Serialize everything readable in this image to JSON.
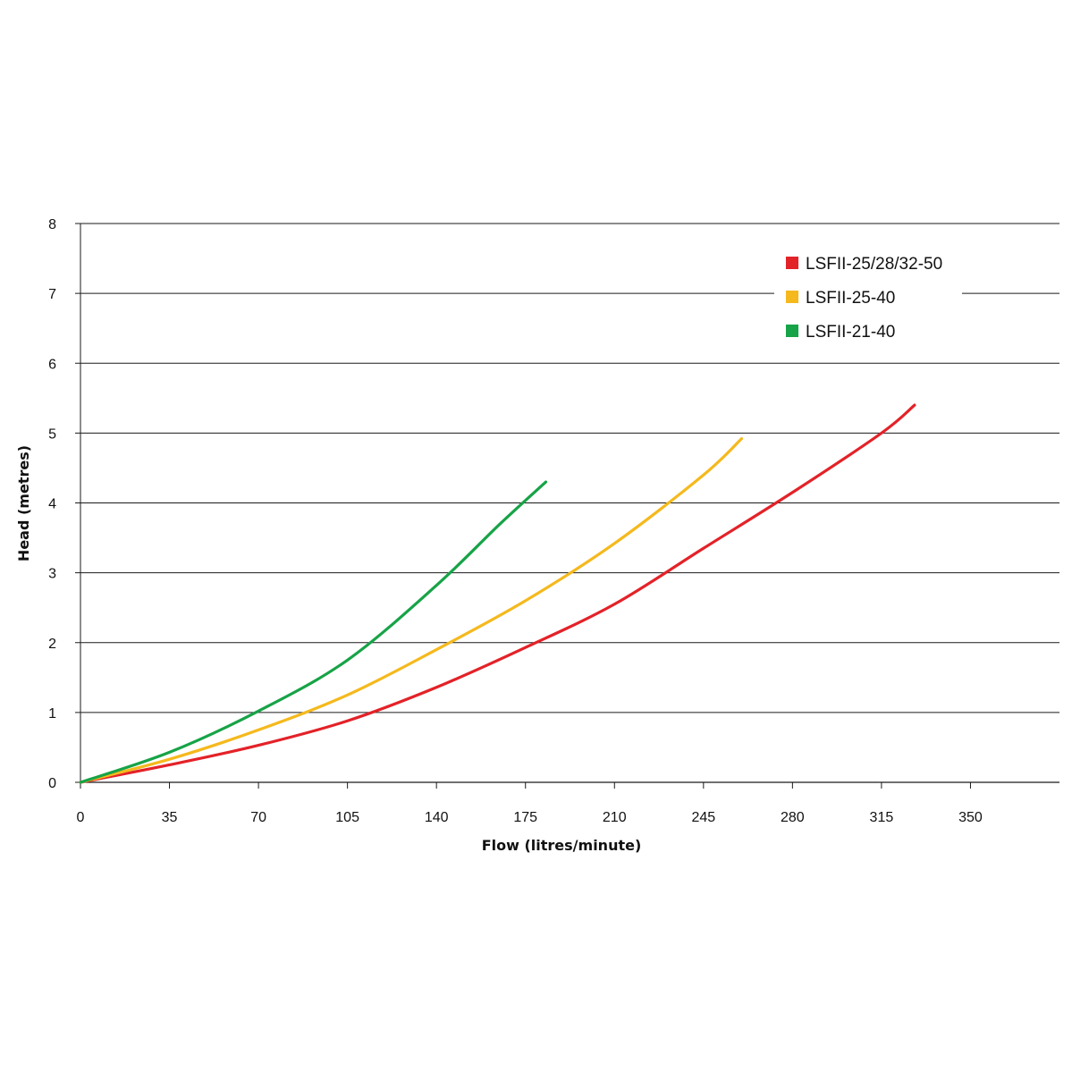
{
  "chart_data": {
    "type": "line",
    "xlabel": "Flow (litres/minute)",
    "ylabel": "Head (metres)",
    "xlim": [
      0,
      385
    ],
    "ylim": [
      0,
      8
    ],
    "xticks": [
      "0",
      "35",
      "70",
      "105",
      "140",
      "175",
      "210",
      "245",
      "280",
      "315",
      "350"
    ],
    "yticks": [
      "0",
      "1",
      "2",
      "3",
      "4",
      "5",
      "6",
      "7",
      "8"
    ],
    "grid": "horizontal",
    "legend_position": "top-right",
    "series": [
      {
        "name": "LSFII-25/28/32-50",
        "color": "#e32228",
        "x": [
          0,
          35,
          70,
          105,
          140,
          175,
          210,
          245,
          280,
          315,
          328
        ],
        "y": [
          0,
          0.25,
          0.53,
          0.88,
          1.36,
          1.93,
          2.55,
          3.35,
          4.15,
          5.0,
          5.4
        ]
      },
      {
        "name": "LSFII-25-40",
        "color": "#f5b91d",
        "x": [
          0,
          35,
          70,
          105,
          140,
          175,
          210,
          245,
          260
        ],
        "y": [
          0,
          0.33,
          0.75,
          1.25,
          1.9,
          2.6,
          3.42,
          4.4,
          4.92
        ]
      },
      {
        "name": "LSFII-21-40",
        "color": "#17a347",
        "x": [
          0,
          35,
          70,
          105,
          140,
          165,
          183
        ],
        "y": [
          0,
          0.43,
          1.02,
          1.75,
          2.82,
          3.7,
          4.3
        ]
      }
    ]
  }
}
